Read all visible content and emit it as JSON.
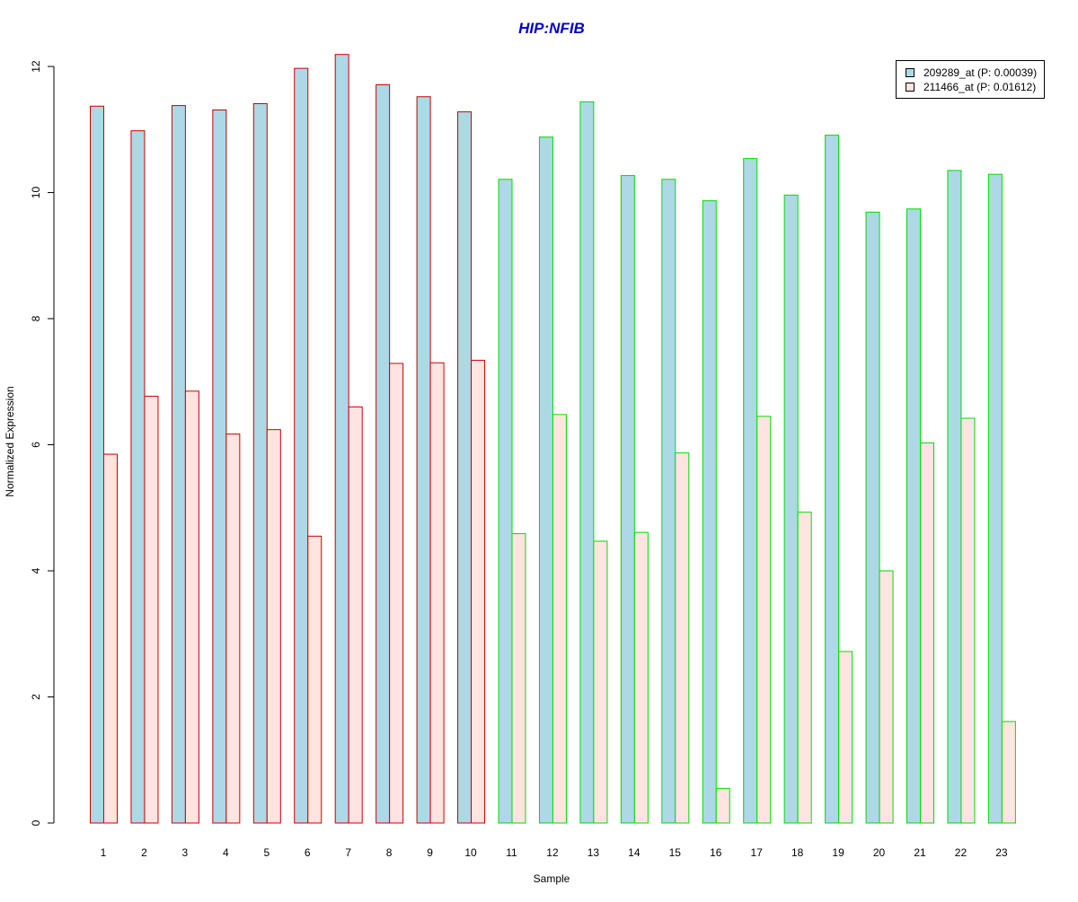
{
  "colors": {
    "title": "#0000cc",
    "fill_series_1": "#add8e6",
    "fill_series_2": "#ffe4e1",
    "group_1_border": "#cc0000",
    "group_2_border": "#00dd00",
    "axis": "#000000"
  },
  "chart_data": {
    "type": "bar",
    "title": "HIP:NFIB",
    "xlabel": "Sample",
    "ylabel": "Normalized Expression",
    "ylim": [
      0,
      12.2
    ],
    "yticks": [
      "0",
      "2",
      "4",
      "6",
      "8",
      "10",
      "12"
    ],
    "categories": [
      "1",
      "2",
      "3",
      "4",
      "5",
      "6",
      "7",
      "8",
      "9",
      "10",
      "11",
      "12",
      "13",
      "14",
      "15",
      "16",
      "17",
      "18",
      "19",
      "20",
      "21",
      "22",
      "23"
    ],
    "group_of_category": [
      1,
      1,
      1,
      1,
      1,
      1,
      1,
      1,
      1,
      1,
      2,
      2,
      2,
      2,
      2,
      2,
      2,
      2,
      2,
      2,
      2,
      2,
      2
    ],
    "series": [
      {
        "name": "209289_at (P: 0.00039)",
        "values": [
          11.37,
          10.98,
          11.38,
          11.31,
          11.41,
          11.97,
          12.19,
          11.71,
          11.52,
          11.28,
          10.21,
          10.88,
          11.44,
          10.27,
          10.21,
          9.87,
          10.54,
          9.96,
          10.91,
          9.69,
          9.74,
          10.35,
          10.29
        ]
      },
      {
        "name": "211466_at (P: 0.01612)",
        "values": [
          5.85,
          6.77,
          6.85,
          6.17,
          6.24,
          4.55,
          6.6,
          7.29,
          7.3,
          7.34,
          4.59,
          6.48,
          4.47,
          4.61,
          5.87,
          0.55,
          6.45,
          4.93,
          2.72,
          4.0,
          6.03,
          6.42,
          1.61
        ]
      }
    ],
    "legend_position": "top-right",
    "grid": false
  }
}
